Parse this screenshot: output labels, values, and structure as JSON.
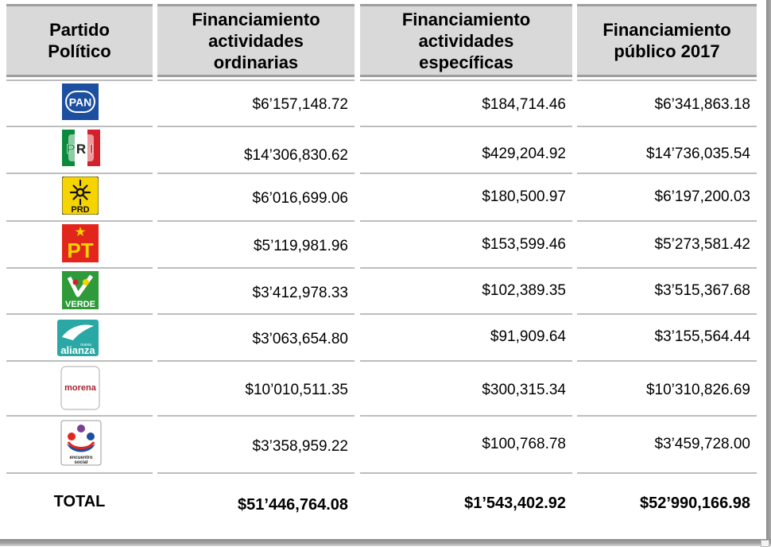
{
  "headers": {
    "party": [
      "Partido",
      "Político"
    ],
    "ordinary": [
      "Financiamiento",
      "actividades",
      "ordinarias"
    ],
    "specific": [
      "Financiamiento",
      "actividades",
      "específicas"
    ],
    "public": [
      "Financiamiento",
      "público 2017"
    ]
  },
  "rows": [
    {
      "party": "PAN",
      "logo_icon": "pan-logo-icon",
      "ordinary": "$6’157,148.72",
      "specific": "$184,714.46",
      "public": "$6’341,863.18"
    },
    {
      "party": "PRI",
      "logo_icon": "pri-logo-icon",
      "ordinary": "$14’306,830.62",
      "specific": "$429,204.92",
      "public": "$14’736,035.54"
    },
    {
      "party": "PRD",
      "logo_icon": "prd-logo-icon",
      "ordinary": "$6’016,699.06",
      "specific": "$180,500.97",
      "public": "$6’197,200.03"
    },
    {
      "party": "PT",
      "logo_icon": "pt-logo-icon",
      "ordinary": "$5’119,981.96",
      "specific": "$153,599.46",
      "public": "$5’273,581.42"
    },
    {
      "party": "VERDE",
      "logo_icon": "verde-logo-icon",
      "ordinary": "$3’412,978.33",
      "specific": "$102,389.35",
      "public": "$3’515,367.68"
    },
    {
      "party": "alianza",
      "logo_icon": "nueva-alianza-logo-icon",
      "ordinary": "$3’063,654.80",
      "specific": "$91,909.64",
      "public": "$3’155,564.44"
    },
    {
      "party": "morena",
      "logo_icon": "morena-logo-icon",
      "ordinary": "$10’010,511.35",
      "specific": "$300,315.34",
      "public": "$10’310,826.69"
    },
    {
      "party": "encuentro social",
      "logo_icon": "encuentro-social-logo-icon",
      "ordinary": "$3’358,959.22",
      "specific": "$100,768.78",
      "public": "$3’459,728.00"
    }
  ],
  "total": {
    "label": "TOTAL",
    "ordinary": "$51’446,764.08",
    "specific": "$1’543,402.92",
    "public": "$52’990,166.98"
  },
  "logo_text": {
    "pan": "PAN",
    "pri": [
      "P",
      "R",
      "I"
    ],
    "prd": "PRD",
    "pt": "PT",
    "verde": "VERDE",
    "nueva": "nueva",
    "alianza": "alianza",
    "morena": "morena",
    "encuentro": [
      "encuentro",
      "social"
    ]
  },
  "colors": {
    "header_bg": "#d9d9d9",
    "pan_blue": "#1d4fa0",
    "pri_green": "#0a8a3a",
    "pri_red": "#d4202a",
    "prd_yellow": "#f6d400",
    "pt_red": "#e3261c",
    "verde_green": "#2f9a3a",
    "alianza_teal": "#29a8a5",
    "morena_maroon": "#a8232f"
  }
}
